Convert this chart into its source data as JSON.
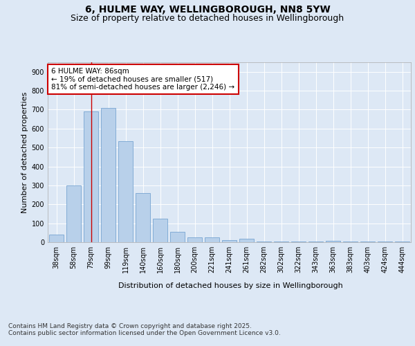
{
  "title_line1": "6, HULME WAY, WELLINGBOROUGH, NN8 5YW",
  "title_line2": "Size of property relative to detached houses in Wellingborough",
  "xlabel": "Distribution of detached houses by size in Wellingborough",
  "ylabel": "Number of detached properties",
  "categories": [
    "38sqm",
    "58sqm",
    "79sqm",
    "99sqm",
    "119sqm",
    "140sqm",
    "160sqm",
    "180sqm",
    "200sqm",
    "221sqm",
    "241sqm",
    "261sqm",
    "282sqm",
    "302sqm",
    "322sqm",
    "343sqm",
    "363sqm",
    "383sqm",
    "403sqm",
    "424sqm",
    "444sqm"
  ],
  "values": [
    40,
    300,
    690,
    710,
    535,
    260,
    125,
    55,
    25,
    25,
    10,
    18,
    5,
    5,
    2,
    2,
    8,
    2,
    2,
    2,
    5
  ],
  "bar_color": "#b8d0ea",
  "bar_edge_color": "#6699cc",
  "background_color": "#dde8f5",
  "plot_bg_color": "#dde8f5",
  "vline_x_index": 2,
  "vline_color": "#cc0000",
  "annotation_line1": "6 HULME WAY: 86sqm",
  "annotation_line2": "← 19% of detached houses are smaller (517)",
  "annotation_line3": "81% of semi-detached houses are larger (2,246) →",
  "annotation_box_color": "#cc0000",
  "ylim": [
    0,
    950
  ],
  "yticks": [
    0,
    100,
    200,
    300,
    400,
    500,
    600,
    700,
    800,
    900
  ],
  "footer_line1": "Contains HM Land Registry data © Crown copyright and database right 2025.",
  "footer_line2": "Contains public sector information licensed under the Open Government Licence v3.0.",
  "title_fontsize": 10,
  "subtitle_fontsize": 9,
  "axis_label_fontsize": 8,
  "tick_fontsize": 7,
  "annotation_fontsize": 7.5,
  "footer_fontsize": 6.5
}
